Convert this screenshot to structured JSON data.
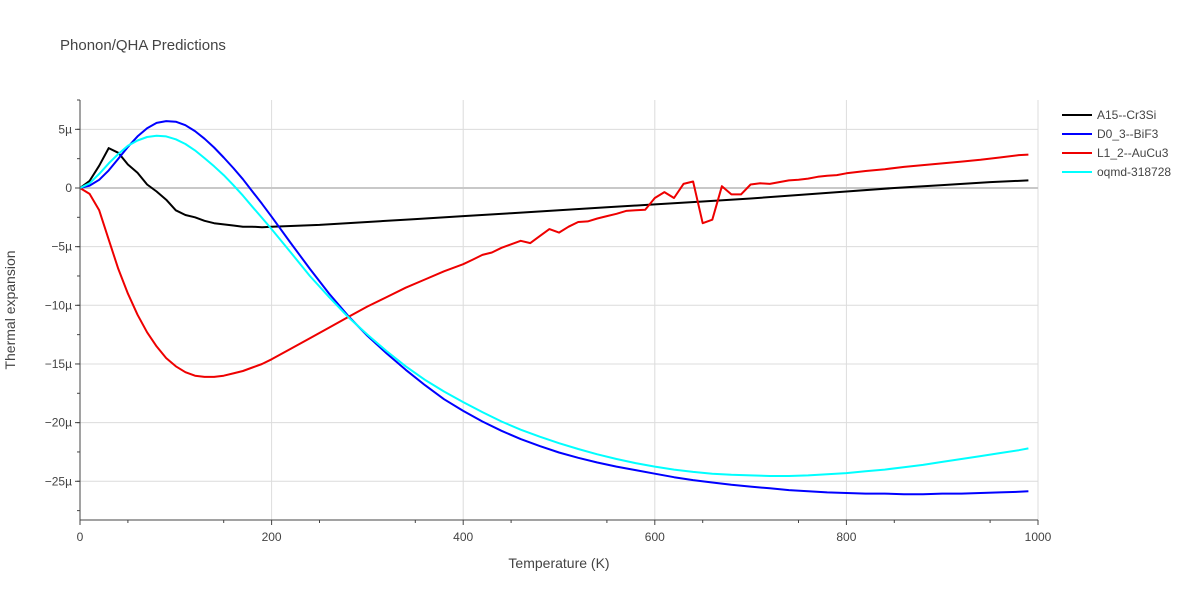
{
  "chart_data": {
    "type": "line",
    "title": "Phonon/QHA Predictions",
    "xlabel": "Temperature (K)",
    "ylabel": "Thermal expansion",
    "xlim": [
      0,
      1000
    ],
    "ylim": [
      -2.83e-05,
      7.5e-06
    ],
    "xticks": [
      0,
      200,
      400,
      600,
      800,
      1000
    ],
    "xtick_labels": [
      "0",
      "200",
      "400",
      "600",
      "800",
      "1000"
    ],
    "yticks": [
      5e-06,
      0,
      -5e-06,
      -1e-05,
      -1.5e-05,
      -2e-05,
      -2.5e-05
    ],
    "ytick_labels": [
      "5µ",
      "0",
      "−5µ",
      "−10µ",
      "−15µ",
      "−20µ",
      "−25µ"
    ],
    "grid": true,
    "legend_position": "top-right",
    "series": [
      {
        "name": "A15--Cr3Si",
        "color": "#000000",
        "x": [
          0,
          10,
          20,
          30,
          40,
          50,
          60,
          70,
          80,
          90,
          100,
          110,
          120,
          130,
          140,
          150,
          160,
          170,
          180,
          190,
          200,
          250,
          300,
          350,
          400,
          450,
          500,
          550,
          600,
          650,
          700,
          750,
          800,
          850,
          900,
          950,
          990
        ],
        "y": [
          0,
          6e-07,
          1.9e-06,
          3.4e-06,
          3e-06,
          2e-06,
          1.3e-06,
          3e-07,
          -3e-07,
          -1e-06,
          -1.9e-06,
          -2.3e-06,
          -2.5e-06,
          -2.8e-06,
          -3e-06,
          -3.1e-06,
          -3.2e-06,
          -3.3e-06,
          -3.3e-06,
          -3.35e-06,
          -3.3e-06,
          -3.15e-06,
          -2.9e-06,
          -2.65e-06,
          -2.4e-06,
          -2.15e-06,
          -1.9e-06,
          -1.65e-06,
          -1.4e-06,
          -1.15e-06,
          -9e-07,
          -6e-07,
          -3e-07,
          0.0,
          2.5e-07,
          5e-07,
          6.5e-07
        ]
      },
      {
        "name": "D0_3--BiF3",
        "color": "#0000ff",
        "x": [
          0,
          10,
          20,
          30,
          40,
          50,
          60,
          70,
          80,
          90,
          100,
          110,
          120,
          130,
          140,
          150,
          160,
          170,
          180,
          190,
          200,
          220,
          240,
          260,
          280,
          300,
          320,
          340,
          360,
          380,
          400,
          420,
          440,
          460,
          480,
          500,
          520,
          540,
          560,
          580,
          600,
          620,
          640,
          660,
          680,
          700,
          720,
          740,
          760,
          780,
          800,
          820,
          840,
          860,
          880,
          900,
          920,
          940,
          960,
          980,
          990
        ],
        "y": [
          0,
          2e-07,
          7e-07,
          1.5e-06,
          2.5e-06,
          3.5e-06,
          4.4e-06,
          5.1e-06,
          5.55e-06,
          5.7e-06,
          5.65e-06,
          5.35e-06,
          4.85e-06,
          4.2e-06,
          3.45e-06,
          2.6e-06,
          1.7e-06,
          7.5e-07,
          -3e-07,
          -1.35e-06,
          -2.45e-06,
          -4.7e-06,
          -6.9e-06,
          -9e-06,
          -1.09e-05,
          -1.26e-05,
          -1.41e-05,
          -1.55e-05,
          -1.68e-05,
          -1.8e-05,
          -1.9e-05,
          -1.99e-05,
          -2.07e-05,
          -2.14e-05,
          -2.2e-05,
          -2.255e-05,
          -2.3e-05,
          -2.34e-05,
          -2.375e-05,
          -2.405e-05,
          -2.435e-05,
          -2.465e-05,
          -2.49e-05,
          -2.51e-05,
          -2.53e-05,
          -2.545e-05,
          -2.56e-05,
          -2.575e-05,
          -2.585e-05,
          -2.595e-05,
          -2.6e-05,
          -2.605e-05,
          -2.605e-05,
          -2.61e-05,
          -2.61e-05,
          -2.605e-05,
          -2.605e-05,
          -2.6e-05,
          -2.595e-05,
          -2.59e-05,
          -2.585e-05
        ]
      },
      {
        "name": "L1_2--AuCu3",
        "color": "#ee0000",
        "x": [
          0,
          10,
          20,
          30,
          40,
          50,
          60,
          70,
          80,
          90,
          100,
          110,
          120,
          130,
          140,
          150,
          160,
          170,
          180,
          190,
          200,
          220,
          240,
          260,
          280,
          300,
          320,
          340,
          360,
          380,
          400,
          410,
          420,
          430,
          440,
          450,
          460,
          470,
          480,
          490,
          500,
          510,
          520,
          530,
          540,
          550,
          560,
          570,
          580,
          590,
          600,
          610,
          620,
          630,
          640,
          650,
          660,
          670,
          680,
          690,
          700,
          710,
          720,
          730,
          740,
          750,
          760,
          770,
          780,
          790,
          800,
          820,
          840,
          860,
          880,
          900,
          920,
          940,
          960,
          980,
          990
        ],
        "y": [
          0,
          -5e-07,
          -1.9e-06,
          -4.4e-06,
          -6.9e-06,
          -9e-06,
          -1.08e-05,
          -1.23e-05,
          -1.35e-05,
          -1.45e-05,
          -1.52e-05,
          -1.57e-05,
          -1.6e-05,
          -1.61e-05,
          -1.61e-05,
          -1.6e-05,
          -1.58e-05,
          -1.56e-05,
          -1.53e-05,
          -1.5e-05,
          -1.46e-05,
          -1.37e-05,
          -1.28e-05,
          -1.19e-05,
          -1.1e-05,
          -1.01e-05,
          -9.3e-06,
          -8.5e-06,
          -7.8e-06,
          -7.1e-06,
          -6.5e-06,
          -6.1e-06,
          -5.7e-06,
          -5.5e-06,
          -5.1e-06,
          -4.8e-06,
          -4.5e-06,
          -4.7e-06,
          -4.1e-06,
          -3.5e-06,
          -3.8e-06,
          -3.3e-06,
          -2.9e-06,
          -2.85e-06,
          -2.6e-06,
          -2.4e-06,
          -2.2e-06,
          -1.95e-06,
          -1.9e-06,
          -1.85e-06,
          -8.5e-07,
          -3.5e-07,
          -8.5e-07,
          3.5e-07,
          5.5e-07,
          -3e-06,
          -2.7e-06,
          1.5e-07,
          -5.5e-07,
          -5.5e-07,
          3e-07,
          4e-07,
          3.5e-07,
          5e-07,
          6.5e-07,
          7e-07,
          8e-07,
          9.5e-07,
          1.05e-06,
          1.1e-06,
          1.25e-06,
          1.45e-06,
          1.6e-06,
          1.8e-06,
          1.95e-06,
          2.1e-06,
          2.25e-06,
          2.4e-06,
          2.6e-06,
          2.8e-06,
          2.85e-06
        ]
      },
      {
        "name": "oqmd-318728",
        "color": "#00ffff",
        "x": [
          0,
          10,
          20,
          30,
          40,
          50,
          60,
          70,
          80,
          90,
          100,
          110,
          120,
          130,
          140,
          150,
          160,
          170,
          180,
          190,
          200,
          220,
          240,
          260,
          280,
          300,
          320,
          340,
          360,
          380,
          400,
          420,
          440,
          460,
          480,
          500,
          520,
          540,
          560,
          580,
          600,
          620,
          640,
          660,
          680,
          700,
          720,
          740,
          760,
          780,
          800,
          820,
          840,
          860,
          880,
          900,
          920,
          940,
          960,
          980,
          990
        ],
        "y": [
          0,
          4e-07,
          1.2e-06,
          2.1e-06,
          2.9e-06,
          3.6e-06,
          4.05e-06,
          4.35e-06,
          4.45e-06,
          4.4e-06,
          4.15e-06,
          3.75e-06,
          3.2e-06,
          2.55e-06,
          1.85e-06,
          1.1e-06,
          2.5e-07,
          -6.5e-07,
          -1.6e-06,
          -2.55e-06,
          -3.5e-06,
          -5.5e-06,
          -7.5e-06,
          -9.3e-06,
          -1.1e-05,
          -1.25e-05,
          -1.39e-05,
          -1.52e-05,
          -1.635e-05,
          -1.735e-05,
          -1.825e-05,
          -1.91e-05,
          -1.99e-05,
          -2.06e-05,
          -2.12e-05,
          -2.175e-05,
          -2.225e-05,
          -2.27e-05,
          -2.31e-05,
          -2.345e-05,
          -2.375e-05,
          -2.4e-05,
          -2.42e-05,
          -2.435e-05,
          -2.445e-05,
          -2.45e-05,
          -2.455e-05,
          -2.455e-05,
          -2.45e-05,
          -2.44e-05,
          -2.43e-05,
          -2.415e-05,
          -2.4e-05,
          -2.38e-05,
          -2.36e-05,
          -2.335e-05,
          -2.31e-05,
          -2.285e-05,
          -2.26e-05,
          -2.235e-05,
          -2.22e-05
        ]
      }
    ]
  }
}
